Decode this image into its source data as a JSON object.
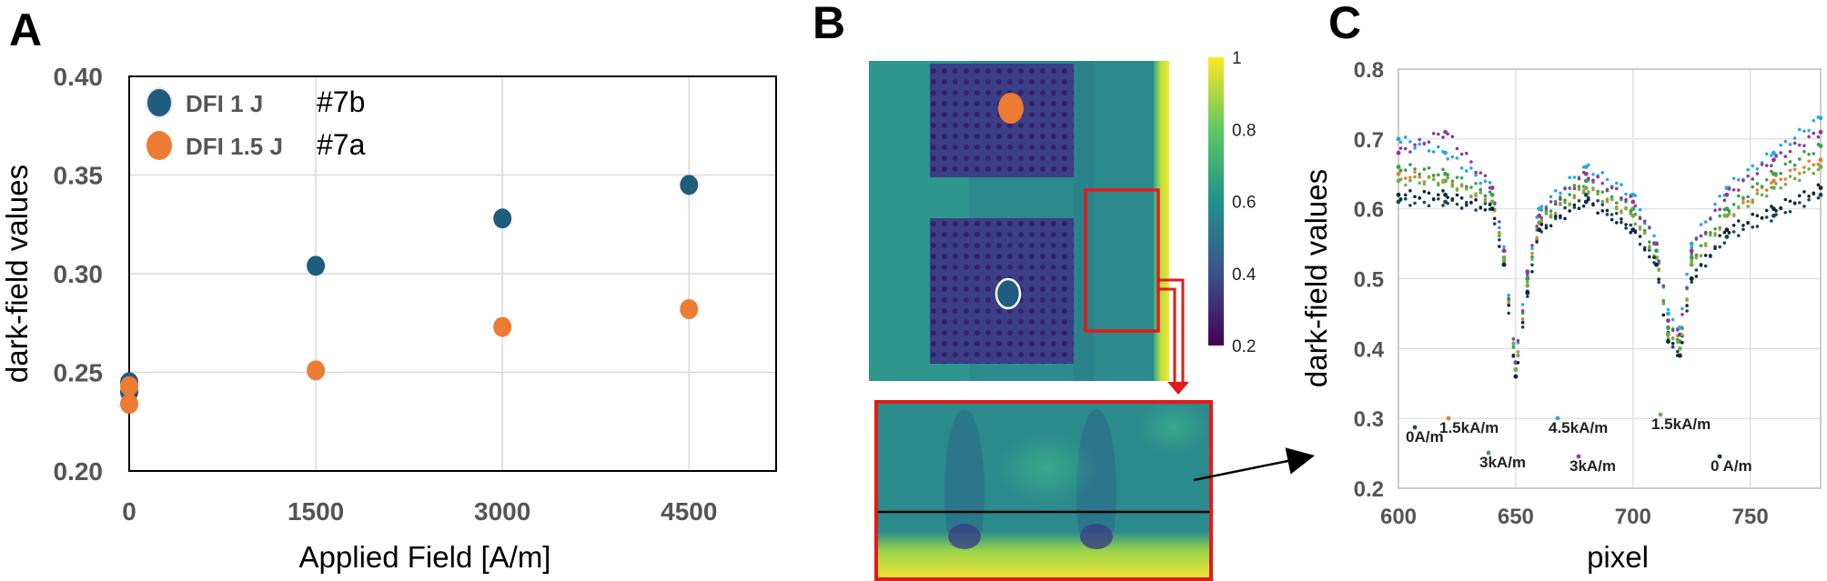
{
  "panel_labels": {
    "a": "A",
    "b": "B",
    "c": "C"
  },
  "chart_data": [
    {
      "panel": "A",
      "type": "scatter",
      "xlabel": "Applied Field [A/m]",
      "ylabel": "dark-field values",
      "xticks": [
        "0",
        "1500",
        "3000",
        "4500"
      ],
      "yticks": [
        "0.20",
        "0.25",
        "0.30",
        "0.35",
        "0.40"
      ],
      "xlim": [
        0,
        5200
      ],
      "ylim": [
        0.2,
        0.4
      ],
      "grid": true,
      "legend_position": "top-left",
      "series": [
        {
          "name": "DFI 1 J",
          "tag": "#7b",
          "color": "#1f5c7e",
          "x": [
            0,
            0,
            1500,
            3000,
            4500
          ],
          "y": [
            0.245,
            0.24,
            0.304,
            0.328,
            0.345
          ]
        },
        {
          "name": "DFI 1.5 J",
          "tag": "#7a",
          "color": "#ee7b33",
          "x": [
            0,
            0,
            1500,
            3000,
            4500
          ],
          "y": [
            0.243,
            0.234,
            0.251,
            0.273,
            0.282
          ]
        }
      ]
    },
    {
      "panel": "B",
      "type": "heatmap",
      "colorbar_ticks": [
        "1",
        "0.8",
        "0.6",
        "0.4",
        "0.2"
      ],
      "colorbar_range": [
        0.2,
        1.0
      ],
      "colormap": [
        "#440154",
        "#3b528b",
        "#21918c",
        "#5ec962",
        "#fde725"
      ]
    },
    {
      "panel": "C",
      "type": "scatter",
      "xlabel": "pixel",
      "ylabel": "dark-field values",
      "xticks": [
        "600",
        "650",
        "700",
        "750"
      ],
      "yticks": [
        "0.2",
        "0.3",
        "0.4",
        "0.5",
        "0.6",
        "0.7",
        "0.8"
      ],
      "xlim": [
        600,
        780
      ],
      "ylim": [
        0.2,
        0.8
      ],
      "grid": true,
      "annotations": [
        "0A/m",
        "1.5kA/m",
        "3kA/m",
        "4.5kA/m",
        "3kA/m",
        "1.5kA/m",
        "0 A/m"
      ],
      "series": [
        {
          "name": "0A/m",
          "color": "#14465e",
          "x": [
            600,
            620,
            640,
            645,
            650,
            655,
            660,
            680,
            700,
            710,
            715,
            720,
            725,
            740,
            760,
            780
          ],
          "y": [
            0.61,
            0.61,
            0.6,
            0.52,
            0.36,
            0.48,
            0.57,
            0.62,
            0.57,
            0.52,
            0.42,
            0.39,
            0.5,
            0.56,
            0.59,
            0.62
          ]
        },
        {
          "name": "1.5kA/m",
          "color": "#ee7b33",
          "x": [
            600,
            620,
            640,
            645,
            650,
            655,
            660,
            680,
            700,
            710,
            715,
            720,
            725,
            740,
            760,
            780
          ],
          "y": [
            0.65,
            0.64,
            0.61,
            0.53,
            0.37,
            0.5,
            0.58,
            0.63,
            0.59,
            0.53,
            0.42,
            0.41,
            0.52,
            0.59,
            0.64,
            0.67
          ]
        },
        {
          "name": "3kA/m",
          "color": "#3aa04a",
          "x": [
            600,
            620,
            640,
            645,
            650,
            655,
            660,
            680,
            700,
            710,
            715,
            720,
            725,
            740,
            760,
            780
          ],
          "y": [
            0.66,
            0.65,
            0.62,
            0.53,
            0.37,
            0.5,
            0.59,
            0.64,
            0.6,
            0.54,
            0.43,
            0.41,
            0.53,
            0.6,
            0.65,
            0.69
          ]
        },
        {
          "name": "4.5kA/m",
          "color": "#2aa8e0",
          "x": [
            600,
            620,
            640,
            645,
            650,
            655,
            660,
            680,
            700,
            710,
            715,
            720,
            725,
            740,
            760,
            780
          ],
          "y": [
            0.7,
            0.68,
            0.63,
            0.54,
            0.38,
            0.51,
            0.6,
            0.66,
            0.62,
            0.55,
            0.45,
            0.43,
            0.55,
            0.63,
            0.68,
            0.73
          ]
        },
        {
          "name": "3kA/m",
          "color": "#8e3a9e",
          "x": [
            600,
            620,
            640,
            645,
            650,
            655,
            660,
            680,
            700,
            710,
            715,
            720,
            725,
            740,
            760,
            780
          ],
          "y": [
            0.68,
            0.71,
            0.63,
            0.54,
            0.38,
            0.51,
            0.59,
            0.65,
            0.61,
            0.55,
            0.44,
            0.42,
            0.54,
            0.62,
            0.67,
            0.71
          ]
        },
        {
          "name": "1.5kA/m",
          "color": "#6cb048",
          "x": [
            600,
            620,
            640,
            645,
            650,
            655,
            660,
            680,
            700,
            710,
            715,
            720,
            725,
            740,
            760,
            780
          ],
          "y": [
            0.64,
            0.64,
            0.61,
            0.53,
            0.37,
            0.49,
            0.58,
            0.63,
            0.59,
            0.53,
            0.42,
            0.4,
            0.52,
            0.59,
            0.63,
            0.66
          ]
        },
        {
          "name": "0 A/m",
          "color": "#0c2738",
          "x": [
            600,
            620,
            640,
            645,
            650,
            655,
            660,
            680,
            700,
            710,
            715,
            720,
            725,
            740,
            760,
            780
          ],
          "y": [
            0.62,
            0.62,
            0.6,
            0.52,
            0.36,
            0.48,
            0.57,
            0.61,
            0.57,
            0.52,
            0.41,
            0.39,
            0.5,
            0.57,
            0.6,
            0.63
          ]
        }
      ]
    }
  ]
}
